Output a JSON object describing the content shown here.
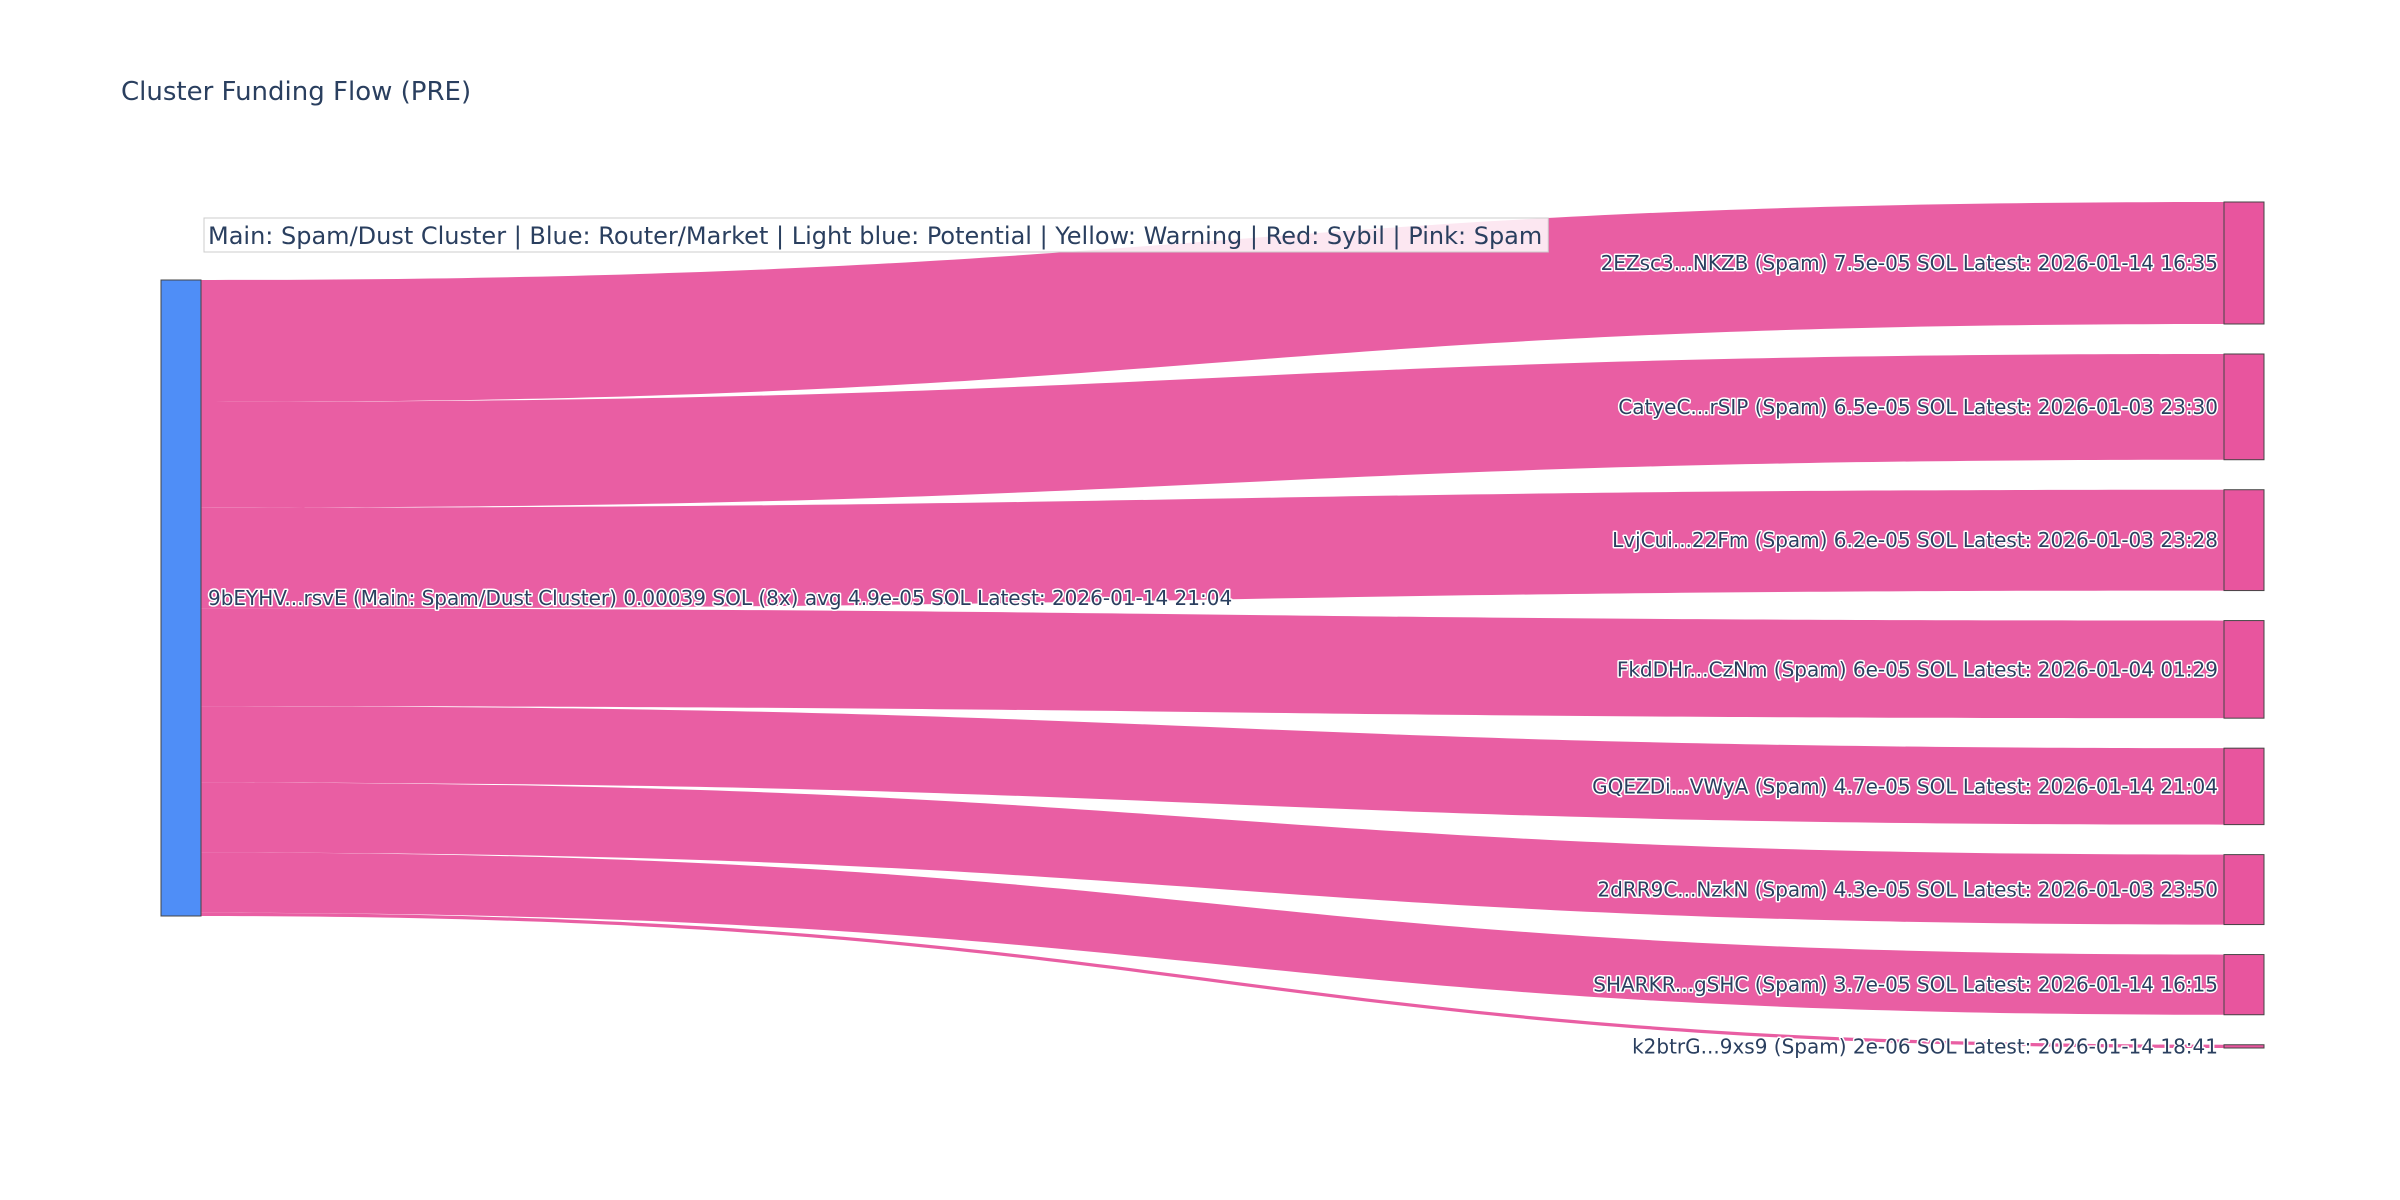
{
  "title": "Cluster Funding Flow (PRE)",
  "legend_text": "Main: Spam/Dust Cluster  |  Blue: Router/Market | Light blue: Potential | Yellow: Warning | Red: Sybil | Pink: Spam",
  "colors": {
    "main_node": "#4f8ef7",
    "spam": "#e8559e",
    "node_border": "#444444",
    "text": "#2a3f5f"
  },
  "chart_data": {
    "type": "sankey",
    "title": "Cluster Funding Flow (PRE)",
    "unit": "SOL",
    "source": {
      "label": "9bEYHV...rsvE (Main: Spam/Dust Cluster) 0.00039 SOL (8x) avg 4.9e-05 SOL Latest: 2026-01-14 21:04",
      "value": 0.00039,
      "category": "Main: Spam/Dust Cluster"
    },
    "targets": [
      {
        "label": "2EZsc3...NKZB (Spam) 7.5e-05 SOL Latest: 2026-01-14 16:35",
        "value": 7.5e-05,
        "category": "Spam"
      },
      {
        "label": "CatyeC...rSIP (Spam) 6.5e-05 SOL Latest: 2026-01-03 23:30",
        "value": 6.5e-05,
        "category": "Spam"
      },
      {
        "label": "LvjCui...22Fm (Spam) 6.2e-05 SOL Latest: 2026-01-03 23:28",
        "value": 6.2e-05,
        "category": "Spam"
      },
      {
        "label": "FkdDHr...CzNm (Spam) 6e-05 SOL Latest: 2026-01-04 01:29",
        "value": 6e-05,
        "category": "Spam"
      },
      {
        "label": "GQEZDi...VWyA (Spam) 4.7e-05 SOL Latest: 2026-01-14 21:04",
        "value": 4.7e-05,
        "category": "Spam"
      },
      {
        "label": "2dRR9C...NzkN (Spam) 4.3e-05 SOL Latest: 2026-01-03 23:50",
        "value": 4.3e-05,
        "category": "Spam"
      },
      {
        "label": "SHARKR...gSHC (Spam) 3.7e-05 SOL Latest: 2026-01-14 16:15",
        "value": 3.7e-05,
        "category": "Spam"
      },
      {
        "label": "k2btrG...9xs9 (Spam) 2e-06 SOL Latest: 2026-01-14 18:41",
        "value": 2e-06,
        "category": "Spam"
      }
    ]
  }
}
